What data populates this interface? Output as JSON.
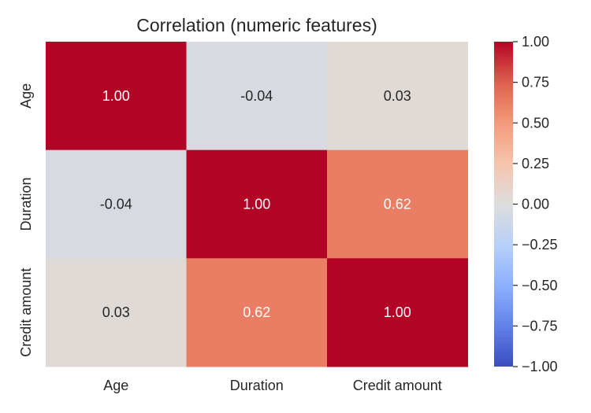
{
  "chart_data": {
    "type": "heatmap",
    "title": "Correlation (numeric features)",
    "xlabel": "",
    "ylabel": "",
    "x_labels": [
      "Age",
      "Duration",
      "Credit amount"
    ],
    "y_labels": [
      "Age",
      "Duration",
      "Credit amount"
    ],
    "values": [
      [
        1.0,
        -0.04,
        0.03
      ],
      [
        -0.04,
        1.0,
        0.62
      ],
      [
        0.03,
        0.62,
        1.0
      ]
    ],
    "annotations": [
      [
        "1.00",
        "-0.04",
        "0.03"
      ],
      [
        "-0.04",
        "1.00",
        "0.62"
      ],
      [
        "0.03",
        "0.62",
        "1.00"
      ]
    ],
    "colormap": "coolwarm",
    "vmin": -1.0,
    "vmax": 1.0,
    "colorbar": {
      "ticks": [
        1.0,
        0.75,
        0.5,
        0.25,
        0.0,
        -0.25,
        -0.5,
        -0.75,
        -1.0
      ],
      "tick_labels": [
        "1.00",
        "0.75",
        "0.50",
        "0.25",
        "0.00",
        "−0.25",
        "−0.50",
        "−0.75",
        "−1.00"
      ]
    },
    "colors": {
      "low": "#3b4cc0",
      "mid": "#dddddd",
      "high": "#b40426"
    },
    "grid": false
  }
}
